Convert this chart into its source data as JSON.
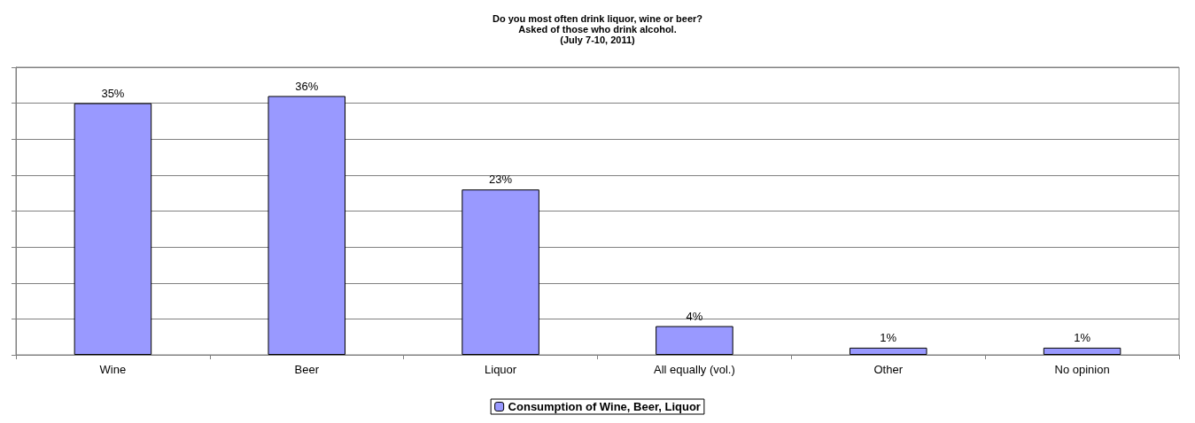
{
  "chart_data": {
    "type": "bar",
    "title": "Do you most often drink liquor, wine or beer?\nAsked of those who drink alcohol.\n(July 7-10, 2011)",
    "categories": [
      "Wine",
      "Beer",
      "Liquor",
      "All equally (vol.)",
      "Other",
      "No opinion"
    ],
    "series": [
      {
        "name": "Consumption of Wine, Beer, Liquor",
        "color": "#9999ff",
        "values": [
          35,
          36,
          23,
          4,
          1,
          1
        ],
        "value_labels": [
          "35%",
          "36%",
          "23%",
          "4%",
          "1%",
          "1%"
        ]
      }
    ],
    "ylim": [
      0,
      40
    ],
    "yticks": [
      {
        "value": 0,
        "label": null
      },
      {
        "value": 5,
        "label": null
      },
      {
        "value": 10,
        "label": null
      },
      {
        "value": 15,
        "label": null
      },
      {
        "value": 20,
        "label": null
      },
      {
        "value": 25,
        "label": null
      },
      {
        "value": 30,
        "label": null
      },
      {
        "value": 35,
        "label": null
      },
      {
        "value": 40,
        "label": null
      }
    ],
    "tick_labels": "x",
    "grid": "y",
    "legend": "bottom"
  }
}
